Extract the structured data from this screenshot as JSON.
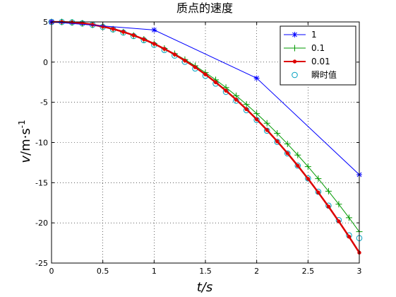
{
  "chart_data": {
    "type": "line",
    "title": "质点的速度",
    "xlabel": "t/s",
    "ylabel": "v/m·s",
    "ylabel_superscript": "-1",
    "xlim": [
      0,
      3
    ],
    "ylim": [
      -25,
      5
    ],
    "xticks": [
      0,
      0.5,
      1,
      1.5,
      2,
      2.5,
      3
    ],
    "xtick_labels": [
      "0",
      "0.5",
      "1",
      "1.5",
      "2",
      "2.5",
      "3"
    ],
    "yticks": [
      5,
      0,
      -5,
      -10,
      -15,
      -20,
      -25
    ],
    "ytick_labels": [
      "5",
      "0",
      "-5",
      "-10",
      "-15",
      "-20",
      "-25"
    ],
    "grid": true,
    "grid_style": "dotted",
    "legend_position": "top-right",
    "series": [
      {
        "name": "1",
        "color": "#0000ff",
        "marker": "star",
        "x": [
          0,
          1,
          2,
          3
        ],
        "y": [
          5,
          4,
          -2,
          -14
        ]
      },
      {
        "name": "0.1",
        "color": "#009900",
        "marker": "plus",
        "x": [
          0,
          0.1,
          0.2,
          0.3,
          0.4,
          0.5,
          0.6,
          0.7,
          0.8,
          0.9,
          1.0,
          1.1,
          1.2,
          1.3,
          1.4,
          1.5,
          1.6,
          1.7,
          1.8,
          1.9,
          2.0,
          2.1,
          2.2,
          2.3,
          2.4,
          2.5,
          2.6,
          2.7,
          2.8,
          2.9,
          3.0
        ],
        "y": [
          5,
          5,
          4.94,
          4.82,
          4.64,
          4.4,
          4.1,
          3.74,
          3.32,
          2.84,
          2.3,
          1.7,
          1.04,
          0.32,
          -0.46,
          -1.3,
          -2.2,
          -3.16,
          -4.18,
          -5.26,
          -6.4,
          -7.6,
          -8.86,
          -10.18,
          -11.56,
          -13.0,
          -14.5,
          -16.06,
          -17.68,
          -19.36,
          -21.1
        ]
      },
      {
        "name": "0.01",
        "color": "#dd0000",
        "marker": "dot",
        "x": [
          0,
          0.1,
          0.2,
          0.3,
          0.4,
          0.5,
          0.6,
          0.7,
          0.8,
          0.9,
          1.0,
          1.1,
          1.2,
          1.3,
          1.4,
          1.5,
          1.6,
          1.7,
          1.8,
          1.9,
          2.0,
          2.1,
          2.2,
          2.3,
          2.4,
          2.5,
          2.6,
          2.7,
          2.8,
          2.9,
          3.0
        ],
        "y": [
          5,
          4.99,
          4.94,
          4.83,
          4.66,
          4.42,
          4.13,
          3.76,
          3.34,
          2.84,
          2.28,
          1.65,
          0.96,
          0.19,
          -0.63,
          -1.53,
          -2.51,
          -3.55,
          -4.67,
          -5.86,
          -7.12,
          -8.45,
          -9.86,
          -11.34,
          -12.89,
          -14.51,
          -16.21,
          -17.97,
          -19.81,
          -21.72,
          -23.7
        ]
      },
      {
        "name": "瞬时值",
        "color": "#00a0c0",
        "marker": "circle",
        "x": [
          0,
          0.1,
          0.2,
          0.3,
          0.4,
          0.5,
          0.6,
          0.7,
          0.8,
          0.9,
          1.0,
          1.1,
          1.2,
          1.3,
          1.4,
          1.5,
          1.6,
          1.7,
          1.8,
          1.9,
          2.0,
          2.1,
          2.2,
          2.3,
          2.4,
          2.5,
          2.6,
          2.7,
          2.8,
          2.9,
          3.0
        ],
        "y": [
          5,
          4.99,
          4.94,
          4.82,
          4.64,
          4.38,
          4.07,
          3.68,
          3.24,
          2.73,
          2.15,
          1.51,
          0.81,
          0.04,
          -0.79,
          -1.7,
          -2.67,
          -3.7,
          -4.8,
          -5.98,
          -7.2,
          -8.53,
          -9.92,
          -11.36,
          -12.88,
          -14.47,
          -16.13,
          -17.86,
          -19.66,
          -21.55,
          -21.9
        ]
      }
    ]
  }
}
